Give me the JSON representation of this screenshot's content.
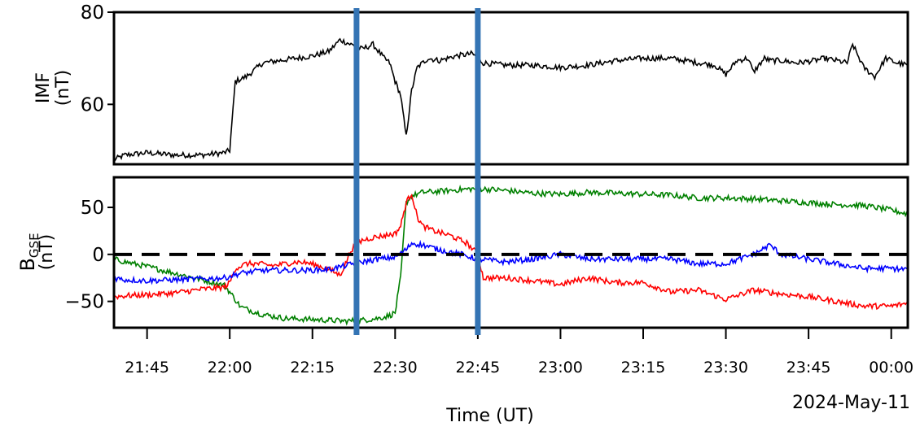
{
  "chart_data": [
    {
      "type": "line",
      "panel": "top",
      "ylabel_line1": "IMF",
      "ylabel_line2": "(nT)",
      "ylim": [
        47,
        80
      ],
      "yticks": [
        60,
        80
      ],
      "grid": false,
      "series": [
        {
          "color": "#000000",
          "x": [
            "21:39",
            "21:41",
            "21:45",
            "21:50",
            "21:55",
            "21:59",
            "22:00",
            "22:01",
            "22:03",
            "22:06",
            "22:09",
            "22:12",
            "22:15",
            "22:18",
            "22:20",
            "22:22",
            "22:24",
            "22:26",
            "22:28",
            "22:29",
            "22:30",
            "22:31",
            "22:32",
            "22:33",
            "22:34",
            "22:36",
            "22:38",
            "22:41",
            "22:44",
            "22:46",
            "22:50",
            "22:55",
            "23:00",
            "23:05",
            "23:10",
            "23:15",
            "23:20",
            "23:25",
            "23:28",
            "23:30",
            "23:32",
            "23:34",
            "23:35",
            "23:37",
            "23:38",
            "23:40",
            "23:43",
            "23:46",
            "23:48",
            "23:50",
            "23:52",
            "23:53",
            "23:55",
            "23:57",
            "23:59",
            "00:01",
            "00:03"
          ],
          "values": [
            48,
            49,
            49.5,
            49,
            49,
            49.5,
            50,
            65,
            66,
            69,
            69.5,
            70,
            70.5,
            71.5,
            74,
            73,
            72,
            73,
            70,
            69,
            65,
            62,
            53,
            63,
            68,
            70,
            69.5,
            70.5,
            71,
            69,
            68.5,
            68.5,
            68,
            68.5,
            69.5,
            70,
            70,
            69,
            68.5,
            66.5,
            69.5,
            70,
            67,
            70,
            69.5,
            69.5,
            69,
            69.5,
            70,
            69.5,
            69,
            73,
            68,
            66,
            70,
            69,
            68.5
          ]
        }
      ]
    },
    {
      "type": "line",
      "panel": "bottom",
      "ylabel_line1": "B",
      "ylabel_sub": "GSE",
      "ylabel_line2": "(nT)",
      "ylim": [
        -78,
        82
      ],
      "yticks": [
        50,
        0,
        -50
      ],
      "ytick_labels": [
        "50",
        "0",
        "−50"
      ],
      "zero_line": true,
      "grid": false,
      "series": [
        {
          "color": "#008000",
          "x": [
            "21:39",
            "21:41",
            "21:45",
            "21:50",
            "21:55",
            "21:59",
            "22:00",
            "22:02",
            "22:06",
            "22:10",
            "22:14",
            "22:18",
            "22:21",
            "22:24",
            "22:27",
            "22:29",
            "22:30",
            "22:31",
            "22:32",
            "22:33",
            "22:35",
            "22:38",
            "22:42",
            "22:45",
            "22:50",
            "22:55",
            "23:00",
            "23:05",
            "23:10",
            "23:15",
            "23:20",
            "23:25",
            "23:30",
            "23:35",
            "23:40",
            "23:45",
            "23:50",
            "23:55",
            "00:00",
            "00:03"
          ],
          "values": [
            -5,
            -8,
            -13,
            -20,
            -27,
            -33,
            -40,
            -56,
            -64,
            -68,
            -69,
            -70,
            -71,
            -70,
            -68,
            -65,
            -62,
            -25,
            55,
            62,
            66,
            67,
            69,
            70,
            68,
            65,
            64,
            66,
            65,
            64,
            63,
            60,
            60,
            59,
            57,
            55,
            53,
            52,
            47,
            43
          ]
        },
        {
          "color": "#ff0000",
          "x": [
            "21:39",
            "21:41",
            "21:45",
            "21:50",
            "21:55",
            "21:59",
            "22:00",
            "22:01",
            "22:03",
            "22:05",
            "22:08",
            "22:10",
            "22:12",
            "22:14",
            "22:16",
            "22:18",
            "22:20",
            "22:21",
            "22:22",
            "22:24",
            "22:26",
            "22:28",
            "22:30",
            "22:31",
            "22:32",
            "22:33",
            "22:34",
            "22:35",
            "22:37",
            "22:40",
            "22:43",
            "22:45",
            "22:46",
            "22:50",
            "22:55",
            "23:00",
            "23:05",
            "23:10",
            "23:15",
            "23:20",
            "23:25",
            "23:30",
            "23:35",
            "23:40",
            "23:45",
            "23:50",
            "23:55",
            "00:00",
            "00:03"
          ],
          "values": [
            -45,
            -44,
            -43,
            -41,
            -37,
            -35,
            -30,
            -15,
            -10,
            -10,
            -12,
            -10,
            -8,
            -9,
            -12,
            -16,
            -22,
            -10,
            5,
            15,
            18,
            20,
            22,
            30,
            55,
            65,
            40,
            30,
            25,
            20,
            12,
            0,
            -25,
            -25,
            -28,
            -32,
            -25,
            -30,
            -30,
            -40,
            -38,
            -48,
            -38,
            -42,
            -45,
            -50,
            -55,
            -55,
            -52
          ]
        },
        {
          "color": "#0000ff",
          "x": [
            "21:39",
            "21:41",
            "21:45",
            "21:50",
            "21:55",
            "21:59",
            "22:02",
            "22:06",
            "22:10",
            "22:14",
            "22:18",
            "22:21",
            "22:24",
            "22:27",
            "22:30",
            "22:32",
            "22:33",
            "22:35",
            "22:38",
            "22:42",
            "22:45",
            "22:50",
            "22:55",
            "23:00",
            "23:05",
            "23:10",
            "23:15",
            "23:20",
            "23:25",
            "23:30",
            "23:35",
            "23:38",
            "23:40",
            "23:45",
            "23:50",
            "23:55",
            "00:00",
            "00:03"
          ],
          "values": [
            -25,
            -27,
            -28,
            -27,
            -26,
            -25,
            -20,
            -17,
            -17,
            -17,
            -16,
            -12,
            -8,
            -5,
            -3,
            5,
            12,
            10,
            5,
            0,
            -5,
            -8,
            -5,
            0,
            -5,
            -5,
            -5,
            -5,
            -10,
            -10,
            0,
            10,
            0,
            -5,
            -10,
            -15,
            -15,
            -16
          ]
        }
      ]
    }
  ],
  "x_axis": {
    "ticks": [
      "21:45",
      "22:00",
      "22:15",
      "22:30",
      "22:45",
      "23:00",
      "23:15",
      "23:30",
      "23:45",
      "00:00"
    ],
    "label": "Time (UT)",
    "start": "21:39",
    "end": "00:03"
  },
  "markers": {
    "color": "#3474b4",
    "times": [
      "22:23",
      "22:45"
    ]
  },
  "date_label": "2024-May-11"
}
